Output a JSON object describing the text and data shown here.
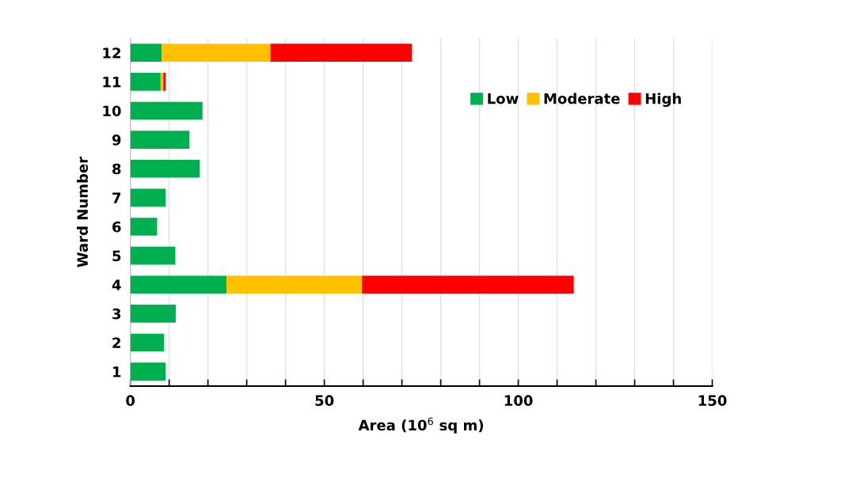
{
  "chart_data": {
    "type": "bar",
    "orientation": "horizontal",
    "stacked": true,
    "xlabel": "Area (10$^{6}$ sq m)",
    "ylabel": "Ward Number",
    "categories": [
      "12",
      "11",
      "10",
      "9",
      "8",
      "7",
      "6",
      "5",
      "4",
      "3",
      "2",
      "1"
    ],
    "series": [
      {
        "name": "Low",
        "color": "#00b050",
        "values": [
          8.1,
          7.8,
          18.6,
          15.2,
          17.9,
          9.1,
          6.9,
          11.6,
          24.8,
          11.7,
          8.7,
          9.1
        ]
      },
      {
        "name": "Moderate",
        "color": "#ffc000",
        "values": [
          28.0,
          0.7,
          null,
          null,
          null,
          null,
          null,
          null,
          34.9,
          null,
          null,
          null
        ]
      },
      {
        "name": "High",
        "color": "#ff0000",
        "values": [
          36.5,
          0.6,
          null,
          null,
          null,
          null,
          null,
          null,
          54.6,
          null,
          null,
          null
        ]
      }
    ],
    "xlim": [
      0,
      150
    ],
    "xticks": [
      0,
      {
        "value": 10,
        "label": null
      },
      {
        "value": 20,
        "label": null
      },
      {
        "value": 30,
        "label": null
      },
      {
        "value": 40,
        "label": null
      },
      50,
      {
        "value": 60,
        "label": null
      },
      {
        "value": 70,
        "label": null
      },
      {
        "value": 80,
        "label": null
      },
      {
        "value": 90,
        "label": null
      },
      100,
      {
        "value": 110,
        "label": null
      },
      {
        "value": 120,
        "label": null
      },
      {
        "value": 130,
        "label": null
      },
      {
        "value": 140,
        "label": null
      },
      150
    ],
    "grid": "x",
    "legend": "top right"
  }
}
